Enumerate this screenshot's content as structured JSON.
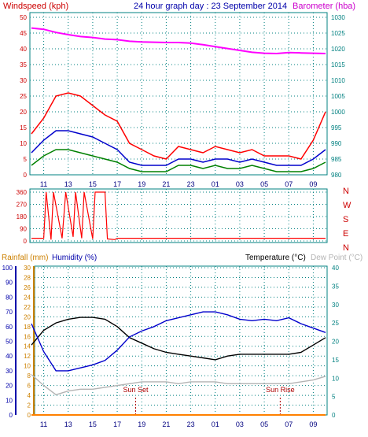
{
  "header": {
    "windspeed_label": "Windspeed (kph)",
    "title": "24 hour graph day : 23 September 2014",
    "barometer_label": "Barometer (hba)"
  },
  "colors": {
    "wind_gust": "#ff0000",
    "wind_avg": "#0000cc",
    "wind_dir": "#008000",
    "barometer": "#ff00ff",
    "temperature": "#000000",
    "humidity": "#0000cc",
    "dew_point": "#b4b4b4",
    "rainfall": "#ff8000",
    "sun_marker": "#aa0000",
    "axis_red": "#cc0000",
    "axis_teal": "#008080",
    "axis_blue": "#0000aa",
    "axis_orange": "#cc8000"
  },
  "chart_data": [
    {
      "type": "line",
      "panel": "wind-barometer",
      "x_tick_labels": [
        "11",
        "13",
        "15",
        "17",
        "19",
        "21",
        "23",
        "01",
        "03",
        "05",
        "07",
        "09"
      ],
      "left_axis": {
        "label": "Windspeed (kph)",
        "ticks": [
          0,
          5,
          10,
          15,
          20,
          25,
          30,
          35,
          40,
          45,
          50
        ],
        "ylim": [
          0,
          50
        ]
      },
      "right_axis": {
        "label": "Barometer (hba)",
        "ticks": [
          980,
          985,
          990,
          995,
          1000,
          1005,
          1010,
          1015,
          1020,
          1025,
          1030
        ],
        "ylim": [
          980,
          1030
        ]
      },
      "grid": true,
      "series": [
        {
          "axis": "right",
          "color": "#ff00ff",
          "points": [
            [
              0,
              1026.6
            ],
            [
              1,
              1026.2
            ],
            [
              2,
              1025.2
            ],
            [
              3,
              1024.5
            ],
            [
              4,
              1023.9
            ],
            [
              5,
              1023.6
            ],
            [
              6,
              1023.1
            ],
            [
              7,
              1022.9
            ],
            [
              8,
              1022.4
            ],
            [
              9,
              1022.2
            ],
            [
              10,
              1022.1
            ],
            [
              11,
              1022.0
            ],
            [
              12,
              1022.0
            ],
            [
              13,
              1021.8
            ],
            [
              14,
              1021.3
            ],
            [
              15,
              1020.7
            ],
            [
              16,
              1020.1
            ],
            [
              17,
              1019.5
            ],
            [
              18,
              1018.9
            ],
            [
              19,
              1018.6
            ],
            [
              20,
              1018.5
            ],
            [
              21,
              1018.8
            ],
            [
              22,
              1018.7
            ],
            [
              23,
              1018.6
            ],
            [
              24,
              1018.5
            ]
          ]
        },
        {
          "axis": "left",
          "color": "#ff0000",
          "points": [
            [
              0,
              13
            ],
            [
              1,
              18
            ],
            [
              2,
              25
            ],
            [
              3,
              26
            ],
            [
              4,
              25
            ],
            [
              5,
              22
            ],
            [
              6,
              19
            ],
            [
              7,
              17
            ],
            [
              8,
              10
            ],
            [
              9,
              8
            ],
            [
              10,
              6
            ],
            [
              11,
              5
            ],
            [
              12,
              9
            ],
            [
              13,
              8
            ],
            [
              14,
              7
            ],
            [
              15,
              9
            ],
            [
              16,
              8
            ],
            [
              17,
              7
            ],
            [
              18,
              8
            ],
            [
              19,
              6
            ],
            [
              20,
              6
            ],
            [
              21,
              6
            ],
            [
              22,
              5
            ],
            [
              23,
              11
            ],
            [
              24,
              20
            ]
          ]
        },
        {
          "axis": "left",
          "color": "#0000cc",
          "points": [
            [
              0,
              7
            ],
            [
              1,
              11
            ],
            [
              2,
              14
            ],
            [
              3,
              14
            ],
            [
              4,
              13
            ],
            [
              5,
              12
            ],
            [
              6,
              10
            ],
            [
              7,
              8
            ],
            [
              8,
              4
            ],
            [
              9,
              3
            ],
            [
              10,
              3
            ],
            [
              11,
              3
            ],
            [
              12,
              5
            ],
            [
              13,
              5
            ],
            [
              14,
              4
            ],
            [
              15,
              5
            ],
            [
              16,
              5
            ],
            [
              17,
              4
            ],
            [
              18,
              5
            ],
            [
              19,
              4
            ],
            [
              20,
              3
            ],
            [
              21,
              3
            ],
            [
              22,
              3
            ],
            [
              23,
              5
            ],
            [
              24,
              8
            ]
          ]
        },
        {
          "axis": "left",
          "color": "#008000",
          "points": [
            [
              0,
              3
            ],
            [
              1,
              6
            ],
            [
              2,
              8
            ],
            [
              3,
              8
            ],
            [
              4,
              7
            ],
            [
              5,
              6
            ],
            [
              6,
              5
            ],
            [
              7,
              4
            ],
            [
              8,
              2
            ],
            [
              9,
              1
            ],
            [
              10,
              1
            ],
            [
              11,
              1
            ],
            [
              12,
              3
            ],
            [
              13,
              3
            ],
            [
              14,
              2
            ],
            [
              15,
              3
            ],
            [
              16,
              2
            ],
            [
              17,
              2
            ],
            [
              18,
              3
            ],
            [
              19,
              2
            ],
            [
              20,
              1
            ],
            [
              21,
              1
            ],
            [
              22,
              1
            ],
            [
              23,
              2
            ],
            [
              24,
              4
            ]
          ]
        }
      ]
    },
    {
      "type": "scatter",
      "panel": "wind-direction",
      "x_tick_labels": [],
      "left_axis": {
        "label": "",
        "ticks": [
          0,
          90,
          180,
          270,
          360
        ],
        "ylim": [
          0,
          360
        ]
      },
      "right_axis_labels": [
        "N",
        "W",
        "S",
        "E",
        "N"
      ],
      "grid": true,
      "series": [
        {
          "color": "#ff0000",
          "points": [
            [
              0,
              20
            ],
            [
              1,
              20
            ],
            [
              1.2,
              360
            ],
            [
              1.6,
              10
            ],
            [
              1.8,
              360
            ],
            [
              2.5,
              20
            ],
            [
              2.8,
              360
            ],
            [
              3.4,
              30
            ],
            [
              3.6,
              360
            ],
            [
              4.1,
              20
            ],
            [
              4.3,
              360
            ],
            [
              5.0,
              15
            ],
            [
              5.2,
              360
            ],
            [
              6.0,
              360
            ],
            [
              6.2,
              15
            ],
            [
              6.8,
              10
            ],
            [
              7,
              20
            ],
            [
              8,
              20
            ],
            [
              9,
              20
            ],
            [
              10,
              20
            ],
            [
              11,
              20
            ],
            [
              12,
              20
            ],
            [
              13,
              20
            ],
            [
              14,
              20
            ],
            [
              15,
              20
            ],
            [
              16,
              20
            ],
            [
              17,
              20
            ],
            [
              18,
              20
            ],
            [
              19,
              20
            ],
            [
              20,
              20
            ],
            [
              21,
              20
            ],
            [
              22,
              20
            ],
            [
              23,
              20
            ],
            [
              24,
              20
            ]
          ]
        }
      ]
    },
    {
      "type": "line",
      "panel": "temperature-humidity",
      "headers": {
        "rainfall": "Rainfall (mm)",
        "humidity": "Humidity (%)",
        "temperature": "Temperature (°C)",
        "dew_point": "Dew Point (°C)"
      },
      "x_tick_labels": [
        "11",
        "13",
        "15",
        "17",
        "19",
        "21",
        "23",
        "01",
        "03",
        "05",
        "07",
        "09"
      ],
      "humidity_axis": {
        "ticks": [
          0,
          10,
          20,
          30,
          40,
          50,
          60,
          70,
          80,
          90,
          100
        ],
        "ylim": [
          0,
          100
        ]
      },
      "rainfall_axis": {
        "ticks": [
          0,
          2,
          4,
          6,
          8,
          10,
          12,
          14,
          16,
          18,
          20,
          22,
          24,
          26,
          28,
          30
        ],
        "ylim": [
          0,
          30
        ]
      },
      "temperature_axis": {
        "ticks": [
          0,
          5,
          10,
          15,
          20,
          25,
          30,
          35,
          40
        ],
        "ylim": [
          0,
          40
        ]
      },
      "grid": true,
      "series": [
        {
          "axis": "temperature",
          "color": "#000000",
          "points": [
            [
              0,
              19
            ],
            [
              1,
              23
            ],
            [
              2,
              25
            ],
            [
              3,
              26
            ],
            [
              4,
              26.5
            ],
            [
              5,
              26.5
            ],
            [
              6,
              26
            ],
            [
              7,
              24
            ],
            [
              8,
              21
            ],
            [
              9,
              19.5
            ],
            [
              10,
              18
            ],
            [
              11,
              17
            ],
            [
              12,
              16.5
            ],
            [
              13,
              16
            ],
            [
              14,
              15.5
            ],
            [
              15,
              15
            ],
            [
              16,
              16
            ],
            [
              17,
              16.5
            ],
            [
              18,
              16.5
            ],
            [
              19,
              16.5
            ],
            [
              20,
              16.5
            ],
            [
              21,
              16.5
            ],
            [
              22,
              17
            ],
            [
              23,
              19
            ],
            [
              24,
              21
            ]
          ]
        },
        {
          "axis": "humidity",
          "color": "#0000cc",
          "points": [
            [
              0,
              62
            ],
            [
              1,
              43
            ],
            [
              2,
              30
            ],
            [
              3,
              30
            ],
            [
              4,
              32
            ],
            [
              5,
              34
            ],
            [
              6,
              37
            ],
            [
              7,
              44
            ],
            [
              8,
              53
            ],
            [
              9,
              57
            ],
            [
              10,
              60
            ],
            [
              11,
              64
            ],
            [
              12,
              66
            ],
            [
              13,
              68
            ],
            [
              14,
              70
            ],
            [
              15,
              70
            ],
            [
              16,
              68
            ],
            [
              17,
              65
            ],
            [
              18,
              64
            ],
            [
              19,
              65
            ],
            [
              20,
              64
            ],
            [
              21,
              66
            ],
            [
              22,
              62
            ],
            [
              23,
              59
            ],
            [
              24,
              56
            ]
          ]
        },
        {
          "axis": "temperature",
          "color": "#b4b4b4",
          "points": [
            [
              0,
              11
            ],
            [
              1,
              8
            ],
            [
              2,
              5.5
            ],
            [
              3,
              6.5
            ],
            [
              4,
              7
            ],
            [
              5,
              7
            ],
            [
              6,
              7.5
            ],
            [
              7,
              8
            ],
            [
              8,
              8.5
            ],
            [
              9,
              9
            ],
            [
              10,
              9
            ],
            [
              11,
              9
            ],
            [
              12,
              8.5
            ],
            [
              13,
              9
            ],
            [
              14,
              9
            ],
            [
              15,
              9
            ],
            [
              16,
              8.5
            ],
            [
              17,
              8.5
            ],
            [
              18,
              8.5
            ],
            [
              19,
              8.5
            ],
            [
              20,
              8.5
            ],
            [
              21,
              8.5
            ],
            [
              22,
              9
            ],
            [
              23,
              9.5
            ],
            [
              24,
              10.5
            ]
          ]
        },
        {
          "axis": "rainfall",
          "color": "#ff8000",
          "points": [
            [
              0,
              0
            ],
            [
              24,
              0
            ]
          ]
        }
      ],
      "annotations": [
        {
          "text": "Sun Set",
          "x": 8.5
        },
        {
          "text": "Sun Rise",
          "x": 20.3
        }
      ]
    }
  ]
}
